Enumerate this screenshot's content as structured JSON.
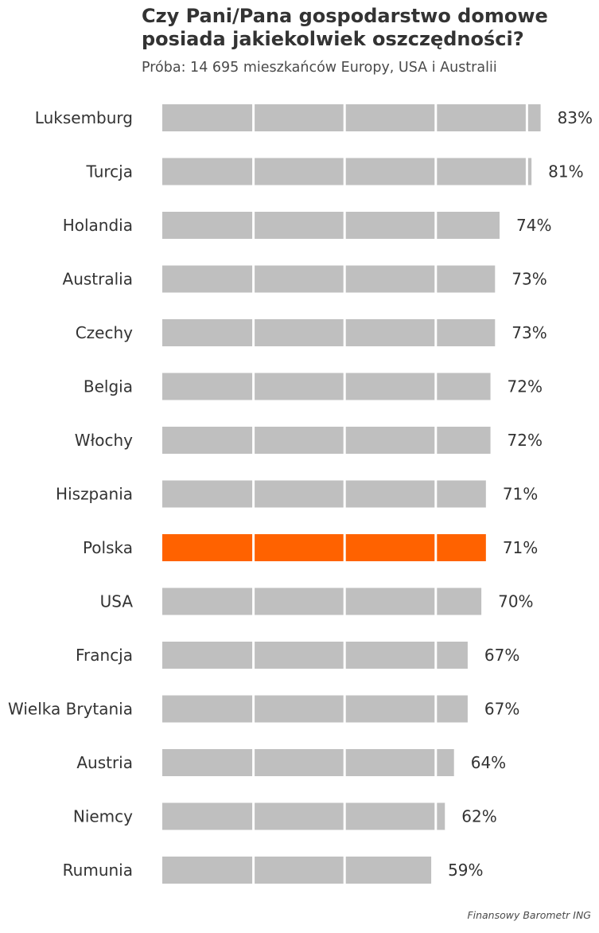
{
  "title": "Czy Pani/Pana gospodarstwo domowe posiada jakiekolwiek oszczędności?",
  "subtitle": "Próba: 14 695 mieszkańców Europy, USA i Australii",
  "source": "Finansowy Barometr ING",
  "colors": {
    "bar": "#bfbfbf",
    "highlight": "#ff6200",
    "text": "#333333",
    "divider": "#ffffff"
  },
  "chart_data": {
    "type": "bar",
    "orientation": "horizontal",
    "categories": [
      "Luksemburg",
      "Turcja",
      "Holandia",
      "Australia",
      "Czechy",
      "Belgia",
      "Włochy",
      "Hiszpania",
      "Polska",
      "USA",
      "Francja",
      "Wielka Brytania",
      "Austria",
      "Niemcy",
      "Rumunia"
    ],
    "values": [
      83,
      81,
      74,
      73,
      73,
      72,
      72,
      71,
      71,
      70,
      67,
      67,
      64,
      62,
      59
    ],
    "value_labels": [
      "83%",
      "81%",
      "74%",
      "73%",
      "73%",
      "72%",
      "72%",
      "71%",
      "71%",
      "70%",
      "67%",
      "67%",
      "64%",
      "62%",
      "59%"
    ],
    "highlight": "Polska",
    "xlim": [
      0,
      100
    ],
    "divider_step": 20,
    "xlabel": "",
    "ylabel": ""
  }
}
